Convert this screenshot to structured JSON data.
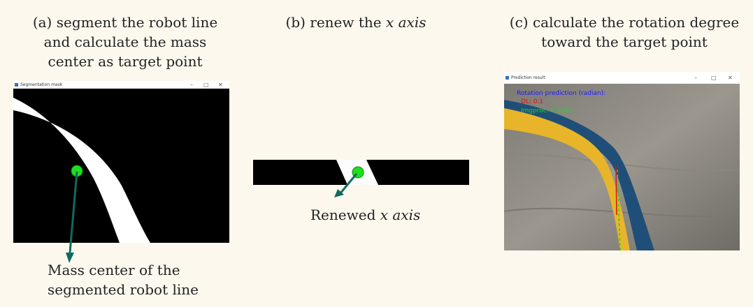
{
  "panel_a": {
    "caption_lines": [
      "(a) segment the robot line",
      "and calculate the mass",
      "center as target point"
    ],
    "window_title": "Segmentation mask",
    "annotation_lines": [
      "Mass center of the",
      "segmented robot line"
    ]
  },
  "panel_b": {
    "caption_prefix": "(b) renew the ",
    "caption_italic": "x axis",
    "annotation_prefix": "Renewed ",
    "annotation_italic": "x axis"
  },
  "panel_c": {
    "caption_lines": [
      "(c) calculate the rotation degree",
      "toward the target point"
    ],
    "window_title": "Prediction result",
    "overlay_line1": "Rotation prediction (radian):",
    "overlay_line2": "DL: 0.1",
    "overlay_line3": "Imgproc: 0.0857"
  },
  "window_controls": [
    "–",
    "□",
    "✕"
  ],
  "colors": {
    "background": "#fdf8ee",
    "mass_center": "#1ee01e",
    "arrow": "#0e6b5e",
    "robot_line_yellow": "#e8b52a",
    "robot_line_blue": "#1f4f78",
    "overlay_blue": "#1a1aff",
    "overlay_red": "#e01010",
    "overlay_green": "#10e010"
  }
}
